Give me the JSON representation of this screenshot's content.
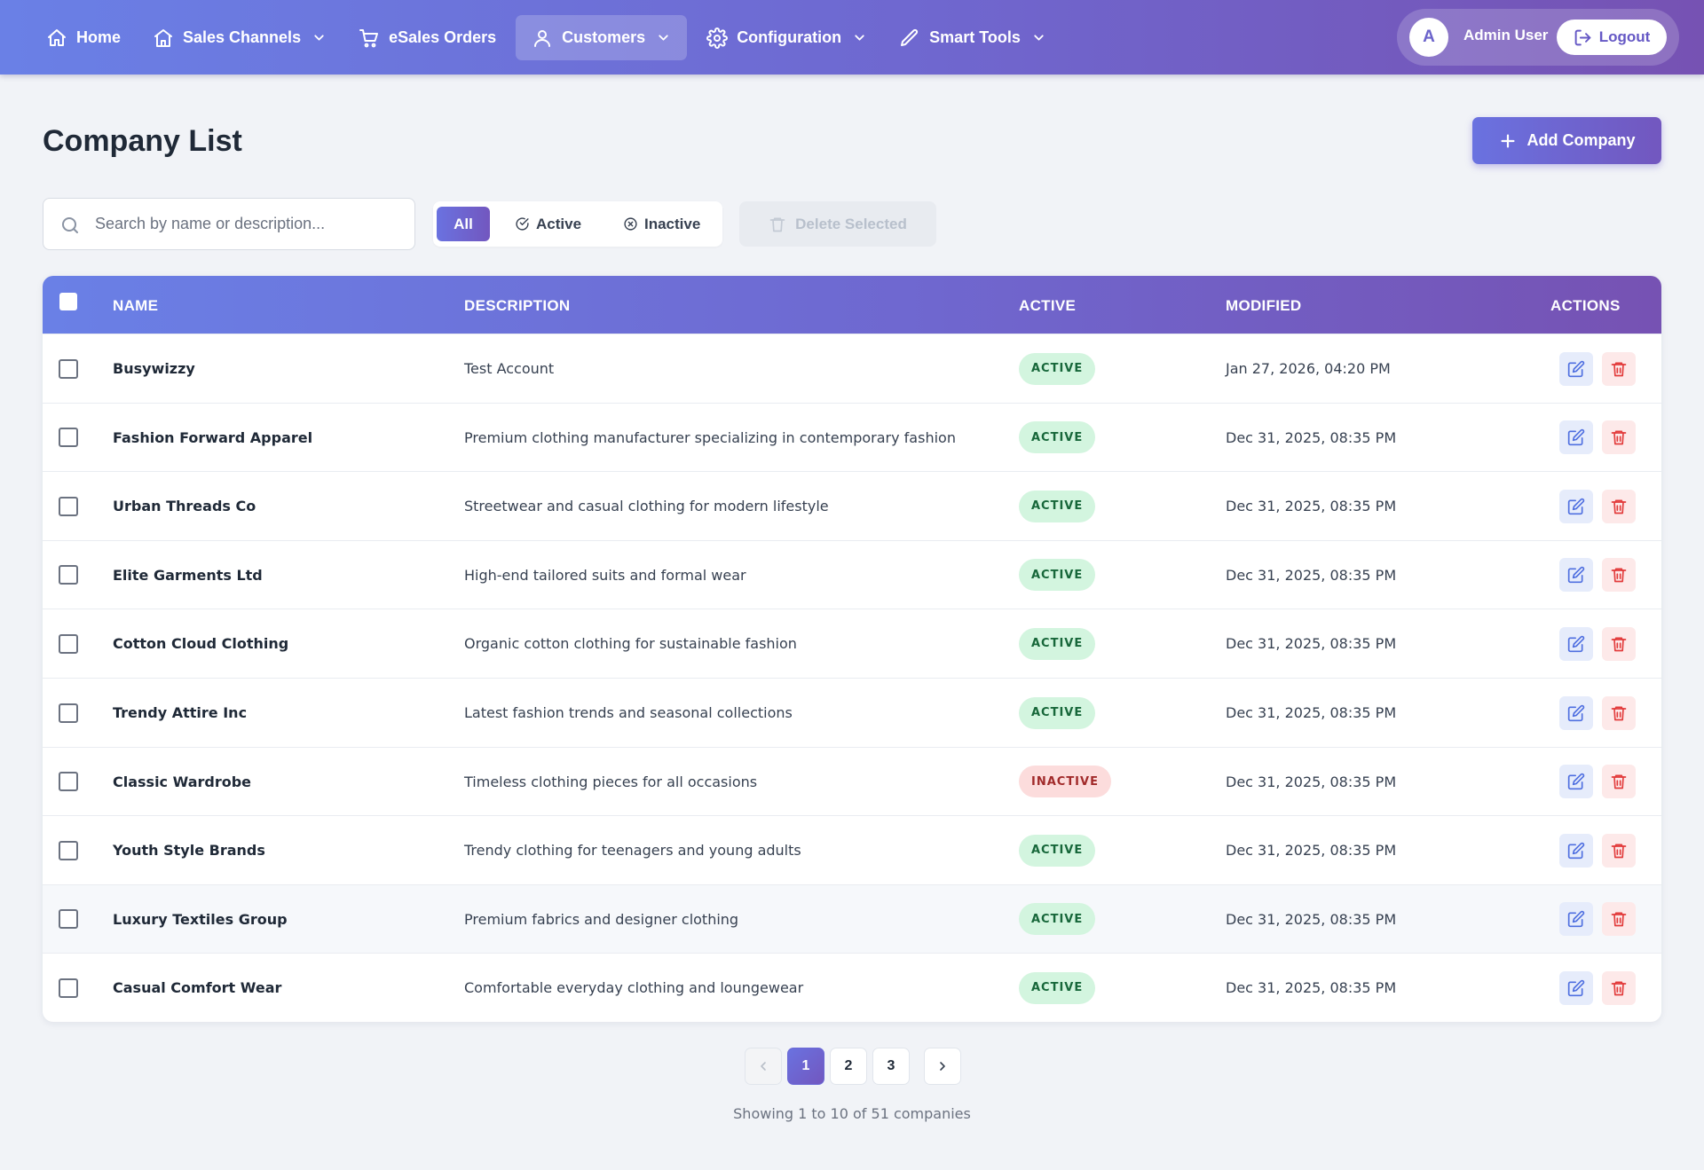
{
  "nav": {
    "items": [
      {
        "label": "Home",
        "icon": "home-icon",
        "dropdown": false,
        "active": false
      },
      {
        "label": "Sales Channels",
        "icon": "store-icon",
        "dropdown": true,
        "active": false
      },
      {
        "label": "eSales Orders",
        "icon": "cart-icon",
        "dropdown": false,
        "active": false
      },
      {
        "label": "Customers",
        "icon": "user-icon",
        "dropdown": true,
        "active": true
      },
      {
        "label": "Configuration",
        "icon": "gear-icon",
        "dropdown": true,
        "active": false
      },
      {
        "label": "Smart Tools",
        "icon": "pencil-icon",
        "dropdown": true,
        "active": false
      }
    ],
    "user": {
      "avatar_initial": "A",
      "name": "Admin User",
      "logout_label": "Logout"
    }
  },
  "page": {
    "title": "Company List",
    "add_label": "Add Company"
  },
  "filters": {
    "search_placeholder": "Search by name or description...",
    "search_value": "",
    "all_label": "All",
    "active_label": "Active",
    "inactive_label": "Inactive",
    "selected": "All",
    "delete_label": "Delete Selected"
  },
  "table": {
    "columns": {
      "name": "NAME",
      "description": "DESCRIPTION",
      "active": "ACTIVE",
      "modified": "MODIFIED",
      "actions": "ACTIONS"
    },
    "rows": [
      {
        "name": "Busywizzy",
        "description": "Test Account",
        "status": "ACTIVE",
        "modified": "Jan 27, 2026, 04:20 PM"
      },
      {
        "name": "Fashion Forward Apparel",
        "description": "Premium clothing manufacturer specializing in contemporary fashion",
        "status": "ACTIVE",
        "modified": "Dec 31, 2025, 08:35 PM"
      },
      {
        "name": "Urban Threads Co",
        "description": "Streetwear and casual clothing for modern lifestyle",
        "status": "ACTIVE",
        "modified": "Dec 31, 2025, 08:35 PM"
      },
      {
        "name": "Elite Garments Ltd",
        "description": "High-end tailored suits and formal wear",
        "status": "ACTIVE",
        "modified": "Dec 31, 2025, 08:35 PM"
      },
      {
        "name": "Cotton Cloud Clothing",
        "description": "Organic cotton clothing for sustainable fashion",
        "status": "ACTIVE",
        "modified": "Dec 31, 2025, 08:35 PM"
      },
      {
        "name": "Trendy Attire Inc",
        "description": "Latest fashion trends and seasonal collections",
        "status": "ACTIVE",
        "modified": "Dec 31, 2025, 08:35 PM"
      },
      {
        "name": "Classic Wardrobe",
        "description": "Timeless clothing pieces for all occasions",
        "status": "INACTIVE",
        "modified": "Dec 31, 2025, 08:35 PM"
      },
      {
        "name": "Youth Style Brands",
        "description": "Trendy clothing for teenagers and young adults",
        "status": "ACTIVE",
        "modified": "Dec 31, 2025, 08:35 PM"
      },
      {
        "name": "Luxury Textiles Group",
        "description": "Premium fabrics and designer clothing",
        "status": "ACTIVE",
        "modified": "Dec 31, 2025, 08:35 PM"
      },
      {
        "name": "Casual Comfort Wear",
        "description": "Comfortable everyday clothing and loungewear",
        "status": "ACTIVE",
        "modified": "Dec 31, 2025, 08:35 PM"
      }
    ]
  },
  "pagination": {
    "pages": [
      "1",
      "2",
      "3"
    ],
    "current": "1",
    "summary": "Showing 1 to 10 of 51 companies"
  },
  "colors": {
    "accent_start": "#6a80e6",
    "accent_end": "#7652b3",
    "active_badge": "#d3f5df",
    "inactive_badge": "#fcdcdc",
    "delete_red": "#e23b3b",
    "edit_blue": "#4f6fe0"
  }
}
